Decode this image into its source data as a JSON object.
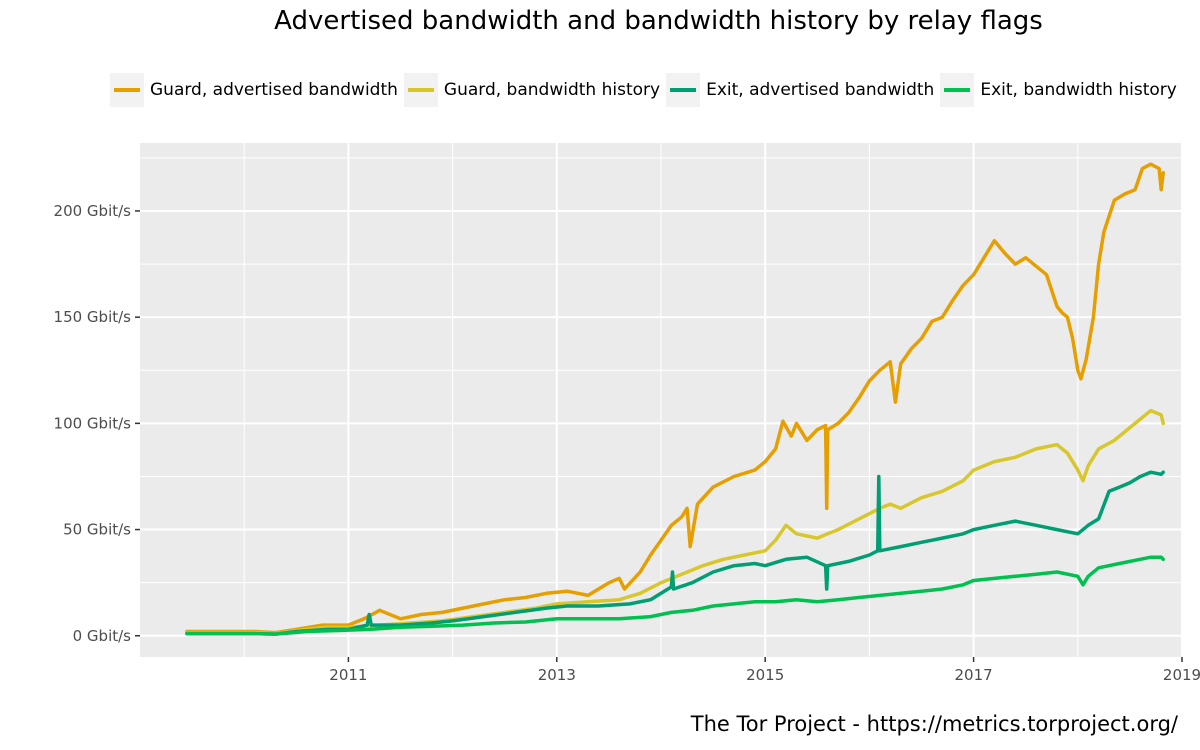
{
  "chart_data": {
    "type": "line",
    "title": "Advertised bandwidth and bandwidth history by relay flags",
    "caption": "The Tor Project - https://metrics.torproject.org/",
    "xlabel": "",
    "ylabel": "",
    "x_unit": "year",
    "xlim": [
      2009.0,
      2019.0
    ],
    "ylim": [
      -10,
      232
    ],
    "x_ticks": [
      {
        "value": 2011,
        "label": "2011"
      },
      {
        "value": 2013,
        "label": "2013"
      },
      {
        "value": 2015,
        "label": "2015"
      },
      {
        "value": 2017,
        "label": "2017"
      },
      {
        "value": 2019,
        "label": "2019"
      }
    ],
    "y_ticks": [
      {
        "value": 0,
        "label": "0 Gbit/s"
      },
      {
        "value": 50,
        "label": "50 Gbit/s"
      },
      {
        "value": 100,
        "label": "100 Gbit/s"
      },
      {
        "value": 150,
        "label": "150 Gbit/s"
      },
      {
        "value": 200,
        "label": "200 Gbit/s"
      }
    ],
    "grid": true,
    "legend_position": "top",
    "series": [
      {
        "name": "Guard, advertised bandwidth",
        "color": "#E69F00",
        "points": [
          [
            2009.45,
            2
          ],
          [
            2009.8,
            2
          ],
          [
            2010.1,
            2
          ],
          [
            2010.3,
            1.5
          ],
          [
            2010.5,
            3
          ],
          [
            2010.75,
            5
          ],
          [
            2011.0,
            5
          ],
          [
            2011.15,
            8
          ],
          [
            2011.3,
            12
          ],
          [
            2011.5,
            8
          ],
          [
            2011.7,
            10
          ],
          [
            2011.9,
            11
          ],
          [
            2012.1,
            13
          ],
          [
            2012.3,
            15
          ],
          [
            2012.5,
            17
          ],
          [
            2012.7,
            18
          ],
          [
            2012.9,
            20
          ],
          [
            2013.1,
            21
          ],
          [
            2013.3,
            19
          ],
          [
            2013.5,
            25
          ],
          [
            2013.6,
            27
          ],
          [
            2013.65,
            22
          ],
          [
            2013.8,
            30
          ],
          [
            2013.9,
            38
          ],
          [
            2014.0,
            45
          ],
          [
            2014.1,
            52
          ],
          [
            2014.2,
            56
          ],
          [
            2014.25,
            60
          ],
          [
            2014.28,
            42
          ],
          [
            2014.35,
            62
          ],
          [
            2014.5,
            70
          ],
          [
            2014.7,
            75
          ],
          [
            2014.9,
            78
          ],
          [
            2015.0,
            82
          ],
          [
            2015.1,
            88
          ],
          [
            2015.17,
            101
          ],
          [
            2015.25,
            94
          ],
          [
            2015.3,
            100
          ],
          [
            2015.4,
            92
          ],
          [
            2015.5,
            97
          ],
          [
            2015.58,
            99
          ],
          [
            2015.59,
            60
          ],
          [
            2015.6,
            97
          ],
          [
            2015.7,
            100
          ],
          [
            2015.8,
            105
          ],
          [
            2015.9,
            112
          ],
          [
            2016.0,
            120
          ],
          [
            2016.1,
            125
          ],
          [
            2016.2,
            129
          ],
          [
            2016.25,
            110
          ],
          [
            2016.3,
            128
          ],
          [
            2016.4,
            135
          ],
          [
            2016.5,
            140
          ],
          [
            2016.6,
            148
          ],
          [
            2016.7,
            150
          ],
          [
            2016.8,
            158
          ],
          [
            2016.9,
            165
          ],
          [
            2017.0,
            170
          ],
          [
            2017.1,
            178
          ],
          [
            2017.2,
            186
          ],
          [
            2017.3,
            180
          ],
          [
            2017.4,
            175
          ],
          [
            2017.5,
            178
          ],
          [
            2017.6,
            174
          ],
          [
            2017.7,
            170
          ],
          [
            2017.8,
            155
          ],
          [
            2017.85,
            152
          ],
          [
            2017.9,
            150
          ],
          [
            2017.95,
            140
          ],
          [
            2018.0,
            125
          ],
          [
            2018.03,
            121
          ],
          [
            2018.08,
            130
          ],
          [
            2018.15,
            150
          ],
          [
            2018.2,
            175
          ],
          [
            2018.25,
            190
          ],
          [
            2018.35,
            205
          ],
          [
            2018.45,
            208
          ],
          [
            2018.55,
            210
          ],
          [
            2018.62,
            220
          ],
          [
            2018.7,
            222
          ],
          [
            2018.78,
            220
          ],
          [
            2018.8,
            210
          ],
          [
            2018.82,
            218
          ]
        ]
      },
      {
        "name": "Guard, bandwidth history",
        "color": "#D8C72C",
        "points": [
          [
            2009.45,
            1.5
          ],
          [
            2009.8,
            1.5
          ],
          [
            2010.1,
            1.5
          ],
          [
            2010.3,
            1
          ],
          [
            2010.5,
            2.5
          ],
          [
            2010.8,
            4
          ],
          [
            2011.0,
            4
          ],
          [
            2011.3,
            5
          ],
          [
            2011.6,
            6
          ],
          [
            2011.9,
            7
          ],
          [
            2012.2,
            9
          ],
          [
            2012.5,
            11
          ],
          [
            2012.8,
            13
          ],
          [
            2013.0,
            15
          ],
          [
            2013.3,
            16
          ],
          [
            2013.6,
            17
          ],
          [
            2013.8,
            20
          ],
          [
            2014.0,
            25
          ],
          [
            2014.2,
            29
          ],
          [
            2014.4,
            33
          ],
          [
            2014.6,
            36
          ],
          [
            2014.8,
            38
          ],
          [
            2015.0,
            40
          ],
          [
            2015.1,
            45
          ],
          [
            2015.2,
            52
          ],
          [
            2015.3,
            48
          ],
          [
            2015.5,
            46
          ],
          [
            2015.6,
            48
          ],
          [
            2015.7,
            50
          ],
          [
            2015.9,
            55
          ],
          [
            2016.1,
            60
          ],
          [
            2016.2,
            62
          ],
          [
            2016.3,
            60
          ],
          [
            2016.5,
            65
          ],
          [
            2016.7,
            68
          ],
          [
            2016.9,
            73
          ],
          [
            2017.0,
            78
          ],
          [
            2017.2,
            82
          ],
          [
            2017.4,
            84
          ],
          [
            2017.6,
            88
          ],
          [
            2017.8,
            90
          ],
          [
            2017.9,
            86
          ],
          [
            2018.0,
            78
          ],
          [
            2018.05,
            73
          ],
          [
            2018.1,
            80
          ],
          [
            2018.2,
            88
          ],
          [
            2018.35,
            92
          ],
          [
            2018.5,
            98
          ],
          [
            2018.6,
            102
          ],
          [
            2018.7,
            106
          ],
          [
            2018.8,
            104
          ],
          [
            2018.82,
            100
          ]
        ]
      },
      {
        "name": "Exit, advertised bandwidth",
        "color": "#009E73",
        "points": [
          [
            2009.45,
            1
          ],
          [
            2009.8,
            1
          ],
          [
            2010.1,
            1
          ],
          [
            2010.3,
            0.8
          ],
          [
            2010.5,
            2
          ],
          [
            2010.8,
            3
          ],
          [
            2011.0,
            3
          ],
          [
            2011.18,
            5
          ],
          [
            2011.2,
            10
          ],
          [
            2011.22,
            5
          ],
          [
            2011.5,
            5
          ],
          [
            2011.8,
            6
          ],
          [
            2012.0,
            7
          ],
          [
            2012.3,
            9
          ],
          [
            2012.6,
            11
          ],
          [
            2012.9,
            13
          ],
          [
            2013.1,
            14
          ],
          [
            2013.4,
            14
          ],
          [
            2013.7,
            15
          ],
          [
            2013.9,
            17
          ],
          [
            2014.0,
            20
          ],
          [
            2014.1,
            23
          ],
          [
            2014.11,
            30
          ],
          [
            2014.12,
            22
          ],
          [
            2014.3,
            25
          ],
          [
            2014.5,
            30
          ],
          [
            2014.7,
            33
          ],
          [
            2014.9,
            34
          ],
          [
            2015.0,
            33
          ],
          [
            2015.2,
            36
          ],
          [
            2015.4,
            37
          ],
          [
            2015.58,
            33
          ],
          [
            2015.59,
            22
          ],
          [
            2015.6,
            33
          ],
          [
            2015.8,
            35
          ],
          [
            2016.0,
            38
          ],
          [
            2016.08,
            40
          ],
          [
            2016.09,
            75
          ],
          [
            2016.1,
            40
          ],
          [
            2016.3,
            42
          ],
          [
            2016.5,
            44
          ],
          [
            2016.7,
            46
          ],
          [
            2016.9,
            48
          ],
          [
            2017.0,
            50
          ],
          [
            2017.2,
            52
          ],
          [
            2017.4,
            54
          ],
          [
            2017.6,
            52
          ],
          [
            2017.8,
            50
          ],
          [
            2018.0,
            48
          ],
          [
            2018.1,
            52
          ],
          [
            2018.2,
            55
          ],
          [
            2018.3,
            68
          ],
          [
            2018.4,
            70
          ],
          [
            2018.5,
            72
          ],
          [
            2018.6,
            75
          ],
          [
            2018.7,
            77
          ],
          [
            2018.8,
            76
          ],
          [
            2018.82,
            77
          ]
        ]
      },
      {
        "name": "Exit, bandwidth history",
        "color": "#00C050",
        "points": [
          [
            2009.45,
            1
          ],
          [
            2009.8,
            1
          ],
          [
            2010.1,
            1
          ],
          [
            2010.3,
            0.8
          ],
          [
            2010.6,
            2
          ],
          [
            2010.9,
            2.5
          ],
          [
            2011.2,
            3
          ],
          [
            2011.5,
            4
          ],
          [
            2011.8,
            4.5
          ],
          [
            2012.1,
            5
          ],
          [
            2012.4,
            6
          ],
          [
            2012.7,
            6.5
          ],
          [
            2013.0,
            8
          ],
          [
            2013.3,
            8
          ],
          [
            2013.6,
            8
          ],
          [
            2013.9,
            9
          ],
          [
            2014.1,
            11
          ],
          [
            2014.3,
            12
          ],
          [
            2014.5,
            14
          ],
          [
            2014.7,
            15
          ],
          [
            2014.9,
            16
          ],
          [
            2015.1,
            16
          ],
          [
            2015.3,
            17
          ],
          [
            2015.5,
            16
          ],
          [
            2015.7,
            17
          ],
          [
            2015.9,
            18
          ],
          [
            2016.1,
            19
          ],
          [
            2016.3,
            20
          ],
          [
            2016.5,
            21
          ],
          [
            2016.7,
            22
          ],
          [
            2016.9,
            24
          ],
          [
            2017.0,
            26
          ],
          [
            2017.2,
            27
          ],
          [
            2017.4,
            28
          ],
          [
            2017.6,
            29
          ],
          [
            2017.8,
            30
          ],
          [
            2018.0,
            28
          ],
          [
            2018.05,
            24
          ],
          [
            2018.1,
            28
          ],
          [
            2018.2,
            32
          ],
          [
            2018.4,
            34
          ],
          [
            2018.6,
            36
          ],
          [
            2018.7,
            37
          ],
          [
            2018.8,
            37
          ],
          [
            2018.82,
            36
          ]
        ]
      }
    ]
  }
}
